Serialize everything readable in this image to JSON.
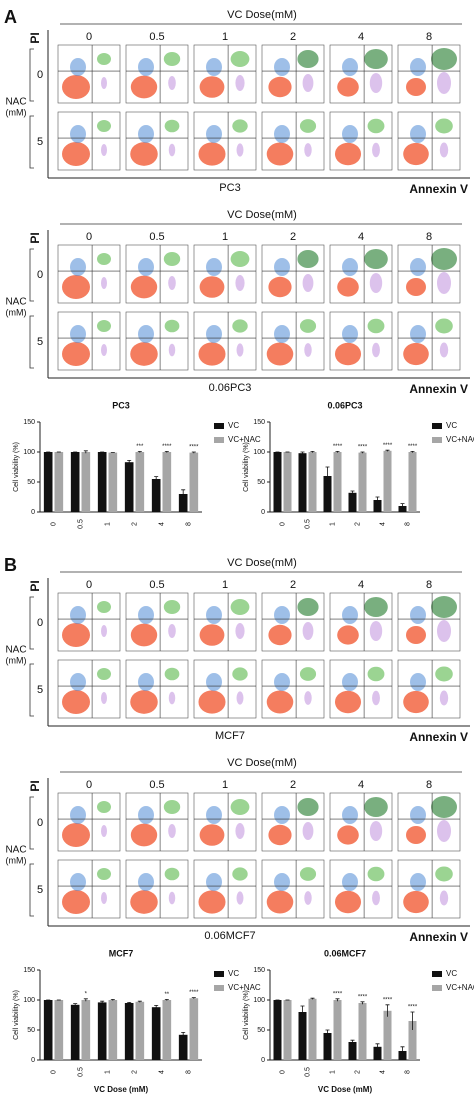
{
  "panels": [
    {
      "label": "A",
      "flows": [
        {
          "title": "VC Dose(mM)",
          "columns": [
            "0",
            "0.5",
            "1",
            "2",
            "4",
            "8"
          ],
          "y_axis": "PI",
          "row_title": "NAC",
          "row_unit": "(mM)",
          "rows": [
            "0",
            "5"
          ],
          "x_axis": "Annexin V",
          "caption": "PC3"
        },
        {
          "title": "VC Dose(mM)",
          "columns": [
            "0",
            "0.5",
            "1",
            "2",
            "4",
            "8"
          ],
          "y_axis": "PI",
          "row_title": "NAC",
          "row_unit": "(mM)",
          "rows": [
            "0",
            "5"
          ],
          "x_axis": "Annexin V",
          "caption": "0.06PC3"
        }
      ]
    },
    {
      "label": "B",
      "flows": [
        {
          "title": "VC Dose(mM)",
          "columns": [
            "0",
            "0.5",
            "1",
            "2",
            "4",
            "8"
          ],
          "y_axis": "PI",
          "row_title": "NAC",
          "row_unit": "(mM)",
          "rows": [
            "0",
            "5"
          ],
          "x_axis": "Annexin V",
          "caption": "MCF7"
        },
        {
          "title": "VC Dose(mM)",
          "columns": [
            "0",
            "0.5",
            "1",
            "2",
            "4",
            "8"
          ],
          "y_axis": "PI",
          "row_title": "NAC",
          "row_unit": "(mM)",
          "rows": [
            "0",
            "5"
          ],
          "x_axis": "Annexin V",
          "caption": "0.06MCF7"
        }
      ]
    }
  ],
  "chart_data": [
    {
      "type": "bar",
      "title": "PC3",
      "ylabel": "Cell viability (%)",
      "categories": [
        "0",
        "0.5",
        "1",
        "2",
        "4",
        "8"
      ],
      "series": [
        {
          "name": "VC",
          "color": "#111111",
          "values": [
            100,
            100,
            100,
            83,
            55,
            30
          ],
          "errors": [
            0,
            0,
            0,
            3,
            4,
            7
          ]
        },
        {
          "name": "VC+NAC",
          "color": "#a6a6a6",
          "values": [
            100,
            100,
            99,
            100,
            100,
            99
          ],
          "errors": [
            0,
            2,
            0,
            1,
            1,
            1
          ],
          "significance": [
            null,
            null,
            null,
            "***",
            "****",
            "****"
          ]
        }
      ],
      "ylim": [
        0,
        150
      ],
      "yticks": [
        0,
        50,
        100,
        150
      ]
    },
    {
      "type": "bar",
      "title": "0.06PC3",
      "ylabel": "Cell viability (%)",
      "categories": [
        "0",
        "0.5",
        "1",
        "2",
        "4",
        "8"
      ],
      "series": [
        {
          "name": "VC",
          "color": "#111111",
          "values": [
            100,
            98,
            60,
            32,
            20,
            10
          ],
          "errors": [
            0,
            2,
            15,
            3,
            5,
            4
          ]
        },
        {
          "name": "VC+NAC",
          "color": "#a6a6a6",
          "values": [
            100,
            100,
            100,
            99,
            102,
            100
          ],
          "errors": [
            0,
            1,
            1,
            1,
            1,
            1
          ],
          "significance": [
            null,
            null,
            "****",
            "****",
            "****",
            "****"
          ]
        }
      ],
      "ylim": [
        0,
        150
      ],
      "yticks": [
        0,
        50,
        100,
        150
      ]
    },
    {
      "type": "bar",
      "title": "MCF7",
      "ylabel": "Cell viability (%)",
      "xlabel": "VC Dose (mM)",
      "categories": [
        "0",
        "0.5",
        "1",
        "2",
        "4",
        "8"
      ],
      "series": [
        {
          "name": "VC",
          "color": "#111111",
          "values": [
            100,
            92,
            96,
            95,
            88,
            42
          ],
          "errors": [
            0,
            2,
            2,
            1,
            3,
            4
          ]
        },
        {
          "name": "VC+NAC",
          "color": "#a6a6a6",
          "values": [
            100,
            100,
            100,
            97,
            100,
            103
          ],
          "errors": [
            0,
            2,
            1,
            1,
            1,
            1
          ],
          "significance": [
            null,
            "*",
            null,
            null,
            "**",
            "****"
          ]
        }
      ],
      "ylim": [
        0,
        150
      ],
      "yticks": [
        0,
        50,
        100,
        150
      ]
    },
    {
      "type": "bar",
      "title": "0.06MCF7",
      "ylabel": "Cell viability (%)",
      "xlabel": "VC Dose (mM)",
      "categories": [
        "0",
        "0.5",
        "1",
        "2",
        "4",
        "8"
      ],
      "series": [
        {
          "name": "VC",
          "color": "#111111",
          "values": [
            100,
            80,
            45,
            30,
            22,
            15
          ],
          "errors": [
            0,
            10,
            5,
            3,
            5,
            7
          ]
        },
        {
          "name": "VC+NAC",
          "color": "#a6a6a6",
          "values": [
            100,
            102,
            100,
            95,
            82,
            65
          ],
          "errors": [
            0,
            1,
            2,
            2,
            10,
            15
          ],
          "significance": [
            null,
            null,
            "****",
            "****",
            "****",
            "****"
          ]
        }
      ],
      "ylim": [
        0,
        150
      ],
      "yticks": [
        0,
        50,
        100,
        150
      ]
    }
  ]
}
